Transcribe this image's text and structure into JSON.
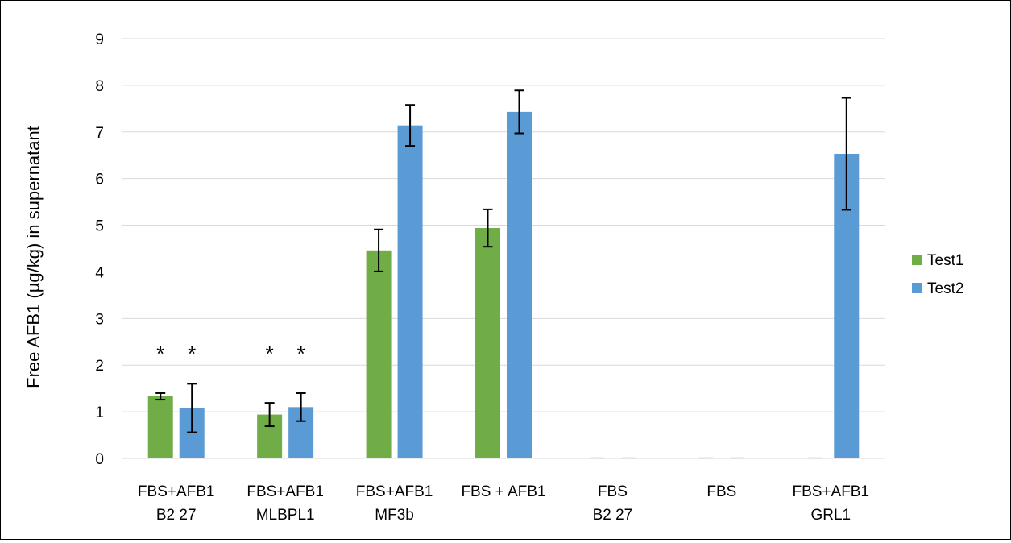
{
  "chart_data": {
    "type": "bar",
    "ylabel": "Free AFB1 (µg/kg) in supernatant",
    "xlabel": "",
    "ylim": [
      0,
      9
    ],
    "yticks": [
      "0",
      "1",
      "2",
      "3",
      "4",
      "5",
      "6",
      "7",
      "8",
      "9"
    ],
    "grid": "horizontal",
    "legend_position": "right",
    "categories": [
      {
        "line1": "FBS+AFB1",
        "line2": "B2 27"
      },
      {
        "line1": "FBS+AFB1",
        "line2": "MLBPL1"
      },
      {
        "line1": "FBS+AFB1",
        "line2": "MF3b"
      },
      {
        "line1": "FBS + AFB1",
        "line2": ""
      },
      {
        "line1": "FBS",
        "line2": "B2 27"
      },
      {
        "line1": "FBS",
        "line2": ""
      },
      {
        "line1": "FBS+AFB1",
        "line2": "GRL1"
      }
    ],
    "series": [
      {
        "name": "Test1",
        "color": "#70ad47",
        "values": [
          1.33,
          0.94,
          4.46,
          4.94,
          0,
          0,
          0
        ],
        "errors": [
          0.07,
          0.25,
          0.45,
          0.4,
          0,
          0,
          0
        ],
        "significant": [
          true,
          true,
          false,
          false,
          false,
          false,
          false
        ]
      },
      {
        "name": "Test2",
        "color": "#5b9bd5",
        "values": [
          1.08,
          1.1,
          7.14,
          7.43,
          0,
          0,
          6.53
        ],
        "errors": [
          0.52,
          0.3,
          0.44,
          0.46,
          0,
          0,
          1.2
        ],
        "significant": [
          true,
          true,
          false,
          false,
          false,
          false,
          false
        ]
      }
    ],
    "annotation_symbol": "*"
  }
}
